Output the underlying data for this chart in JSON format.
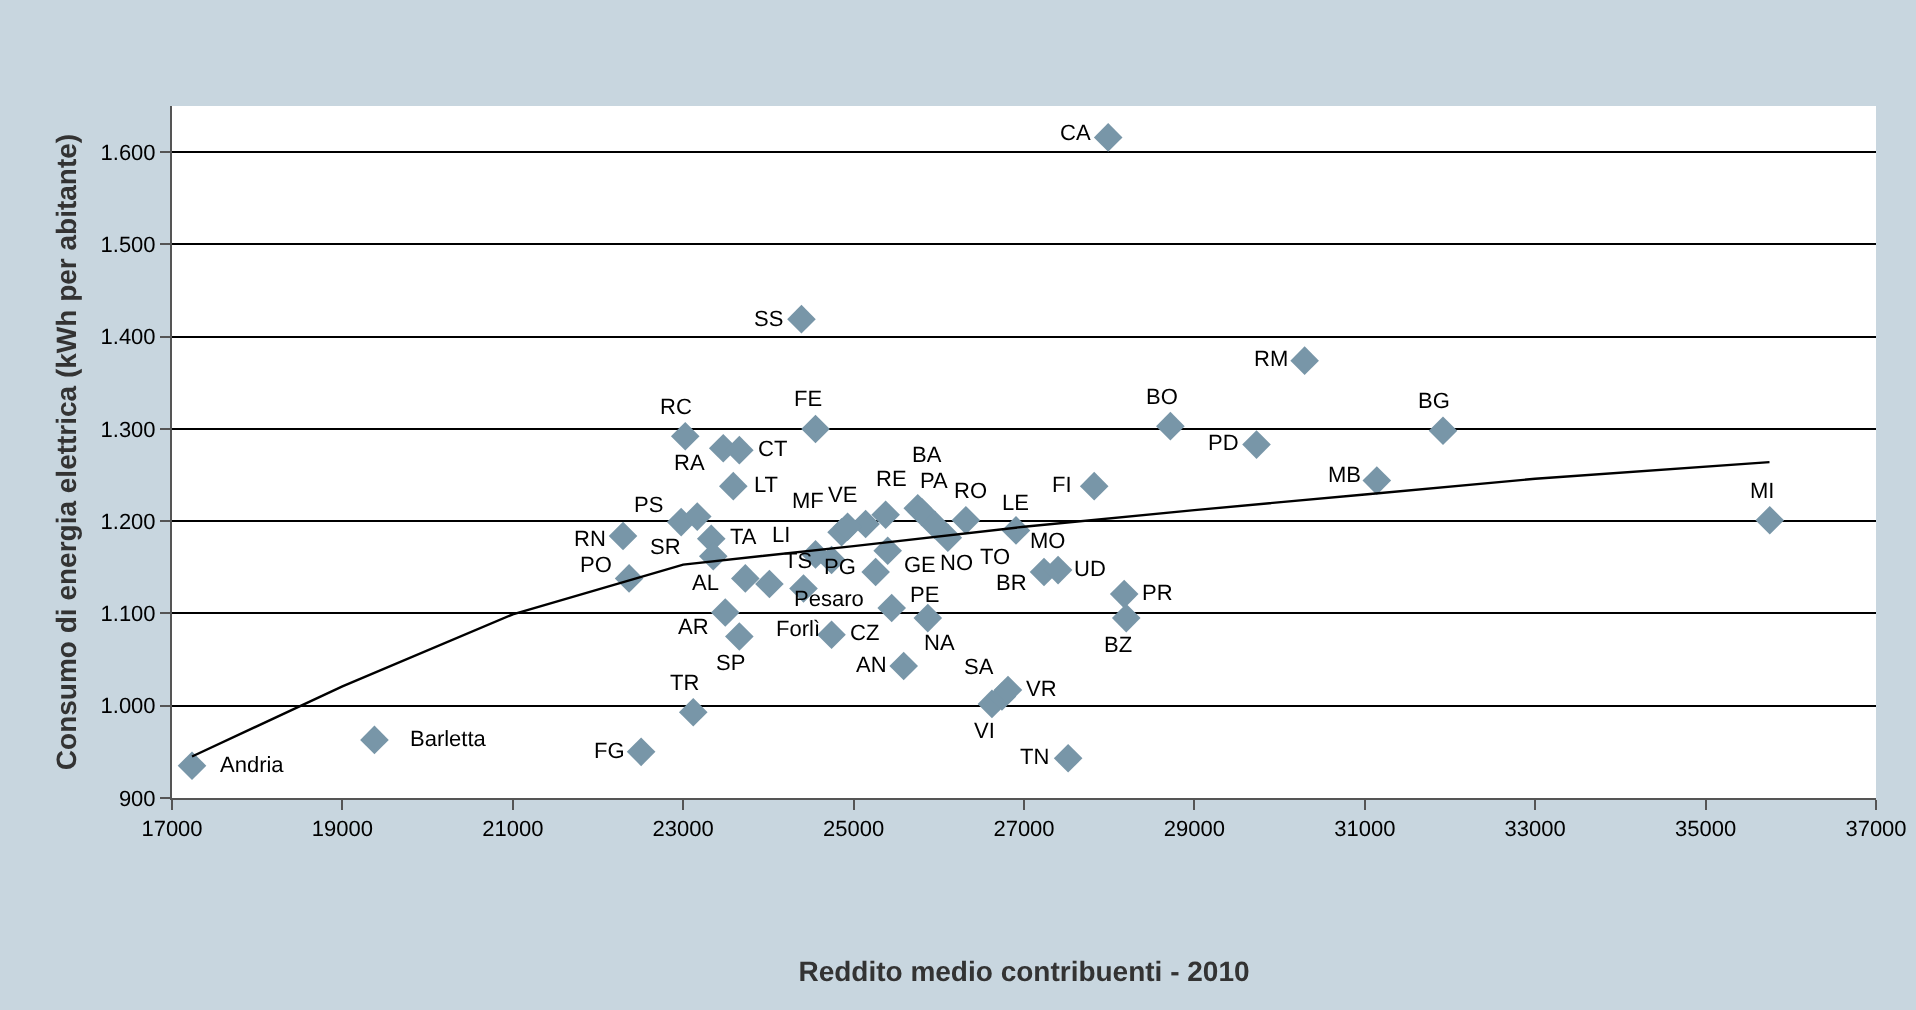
{
  "chart_data": {
    "type": "scatter",
    "xlabel": "Reddito medio contribuenti - 2010",
    "ylabel": "Consumo di energia elettrica (kWh per abitante)",
    "xlim": [
      17000,
      37000
    ],
    "xticks": [
      17000,
      19000,
      21000,
      23000,
      25000,
      27000,
      29000,
      31000,
      33000,
      35000,
      37000
    ],
    "ylim": [
      900,
      1650
    ],
    "yticks": [
      900,
      {
        "value": 1000,
        "label": "1.000"
      },
      {
        "value": 1100,
        "label": "1.100"
      },
      {
        "value": 1200,
        "label": "1.200"
      },
      {
        "value": 1300,
        "label": "1.300"
      },
      {
        "value": 1400,
        "label": "1.400"
      },
      {
        "value": 1500,
        "label": "1.500"
      },
      {
        "value": 1600,
        "label": "1.600"
      }
    ],
    "grid": "y",
    "marker": "diamond",
    "series": [
      {
        "color": "#7896a8",
        "x": [
          17235,
          19376,
          22506,
          23118,
          27988,
          24388,
          30294,
          28718,
          29729,
          31918,
          31141,
          27824,
          35753,
          24553,
          23024,
          23470,
          23659,
          23588,
          22976,
          23165,
          23329,
          22294,
          22365,
          23353,
          23729,
          24012,
          23494,
          24412,
          23659,
          24741,
          24553,
          24741,
          25400,
          25141,
          24859,
          24929,
          25376,
          25753,
          25800,
          25953,
          26106,
          26318,
          26906,
          25259,
          25447,
          25871,
          25588,
          27235,
          27400,
          28176,
          28200,
          26624,
          26741,
          26812,
          27518
        ],
        "values": [
          935,
          963,
          950,
          993,
          1616,
          1419,
          1374,
          1303,
          1283,
          1298,
          1244,
          1238,
          1201,
          1300,
          1292,
          1279,
          1277,
          1238,
          1199,
          1205,
          1181,
          1184,
          1138,
          1162,
          1138,
          1132,
          1101,
          1127,
          1075,
          1077,
          1164,
          1158,
          1168,
          1197,
          1188,
          1194,
          1207,
          1214,
          1210,
          1196,
          1182,
          1201,
          1190,
          1145,
          1106,
          1095,
          1043,
          1145,
          1147,
          1121,
          1095,
          1002,
          1010,
          1017,
          943
        ],
        "value_labels": [
          "Andria",
          "Barletta",
          "FG",
          "TR",
          "CA",
          "SS",
          "RM",
          "BO",
          "PD",
          "BG",
          "MB",
          "FI",
          "MI",
          "FE",
          "RC",
          "RA",
          "CT",
          "LT",
          "PS",
          "SR",
          "TA",
          "RN",
          "PO",
          "AL",
          "Forlì",
          "Pesaro",
          "AR",
          "LI",
          "SP",
          "CZ",
          "MF",
          "PG",
          "GE",
          "VE",
          "RE",
          "TS",
          "PA",
          "BA",
          "RO",
          "NO",
          "TO",
          "LE",
          "MO",
          "PE",
          "NA",
          null,
          "AN",
          "BR",
          "UD",
          "PR",
          "BZ",
          "VI",
          "SA",
          "VR",
          "TN"
        ]
      },
      {
        "type": "line",
        "color": "#000000",
        "marker": "none",
        "line_style": "solid",
        "x": [
          17235,
          19000,
          21000,
          23000,
          25000,
          27000,
          29000,
          31000,
          33000,
          35750
        ],
        "values": [
          945,
          1021,
          1099,
          1153,
          1173,
          1194,
          1212,
          1229,
          1246,
          1264
        ]
      }
    ]
  }
}
